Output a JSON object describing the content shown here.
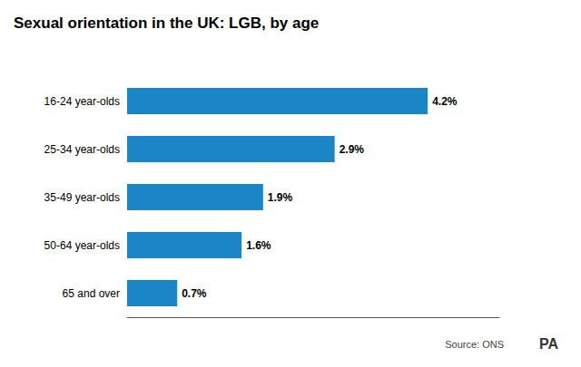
{
  "chart_data": {
    "type": "bar",
    "orientation": "horizontal",
    "title": "Sexual orientation in the UK: LGB, by age",
    "categories": [
      "16-24 year-olds",
      "25-34 year-olds",
      "35-49 year-olds",
      "50-64 year-olds",
      "65 and over"
    ],
    "values": [
      4.2,
      2.9,
      1.9,
      1.6,
      0.7
    ],
    "value_labels": [
      "4.2%",
      "2.9%",
      "1.9%",
      "1.6%",
      "0.7%"
    ],
    "data_labels": true,
    "color": "#1a86c8",
    "xlim": [
      0,
      5.2
    ],
    "grid": false,
    "tick_labels": "y",
    "annotations": [
      "Source: ONS",
      "PA"
    ]
  }
}
